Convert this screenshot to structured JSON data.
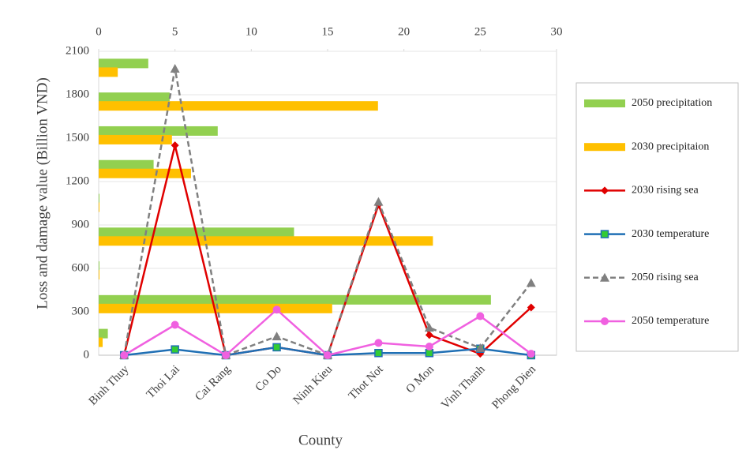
{
  "chart_data": {
    "type": "combo",
    "y_label": "Loss and damage value (Billion VND)",
    "x_label": "County",
    "categories": [
      "Binh Thuy",
      "Thoi Lai",
      "Cai Rang",
      "Co Do",
      "Ninh Kieu",
      "Thot Not",
      "O Mon",
      "Vinh Thanh",
      "Phong Dien"
    ],
    "ylim": [
      0,
      2100
    ],
    "yticks": [
      0,
      300,
      600,
      900,
      1200,
      1500,
      1800,
      2100
    ],
    "x2lim": [
      0,
      30
    ],
    "x2ticks": [
      0,
      5,
      10,
      15,
      20,
      25,
      30
    ],
    "grid": true,
    "legend": "right",
    "series": [
      {
        "name": "2050 precipitation",
        "type": "hbar",
        "axis": "x2",
        "color": "#92d050",
        "values": [
          0.6,
          25.7,
          0.05,
          12.8,
          0.05,
          3.6,
          7.8,
          4.65,
          3.25
        ]
      },
      {
        "name": "2030 precipitaion",
        "type": "hbar",
        "axis": "x2",
        "color": "#ffc000",
        "values": [
          0.26,
          15.3,
          0.05,
          21.9,
          0.05,
          6.05,
          4.8,
          18.3,
          1.25
        ]
      },
      {
        "name": "2030 rising sea",
        "type": "line",
        "color": "#e00000",
        "marker": "diamond",
        "values": [
          0,
          1450,
          0,
          55,
          0,
          1040,
          140,
          10,
          330
        ]
      },
      {
        "name": "2030 temperature",
        "type": "line",
        "color": "#1f6fb4",
        "marker": "square",
        "values": [
          0,
          40,
          0,
          55,
          0,
          15,
          15,
          45,
          0
        ]
      },
      {
        "name": "2050 rising sea",
        "type": "line",
        "color": "#808080",
        "marker": "triangle",
        "dash": true,
        "values": [
          0,
          1980,
          0,
          130,
          0,
          1060,
          190,
          50,
          500
        ]
      },
      {
        "name": "2050 temperature",
        "type": "line",
        "color": "#f060e0",
        "marker": "circle",
        "values": [
          0,
          210,
          0,
          315,
          0,
          85,
          60,
          270,
          10
        ]
      }
    ]
  }
}
